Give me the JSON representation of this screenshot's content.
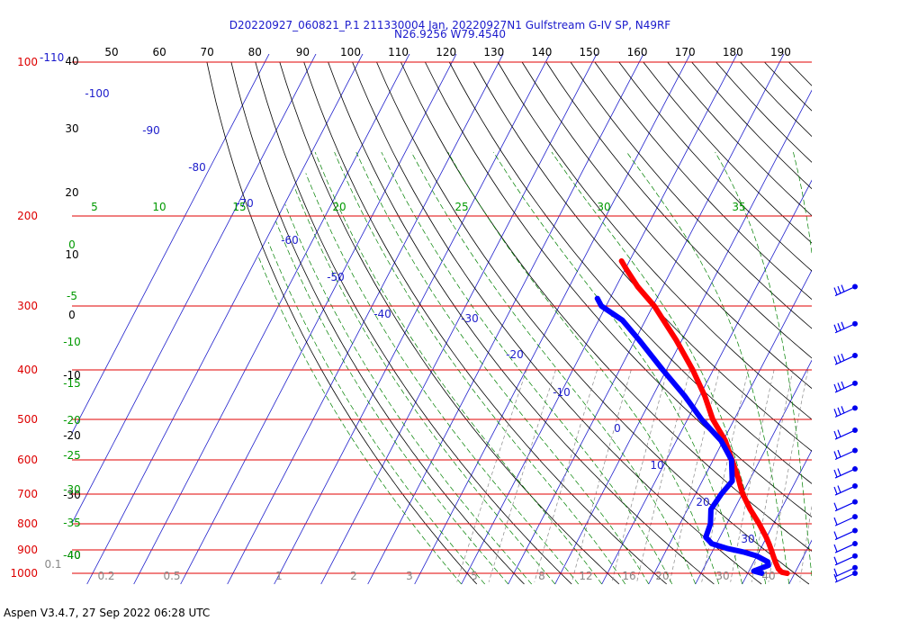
{
  "title": {
    "line1": "D20220927_060821_P.1 211330004 Jan, 20220927N1 Gulfstream G-IV SP, N49RF",
    "line2": "N26.9256 W79.4540"
  },
  "footer": "Aspen V3.4.7, 27 Sep 2022  06:28 UTC",
  "colors": {
    "isobar": "#e00000",
    "isotherm": "#2020cc",
    "dry_adiabat": "#000000",
    "mixing_ratio": "#888888",
    "moist_adiabat": "#008000",
    "temperature_trace": "#ff0000",
    "dewpoint_trace": "#0000ff"
  },
  "chart_data": {
    "type": "line",
    "subtype": "skew-T log-P diagram",
    "pressure_labels": [
      "100",
      "200",
      "300",
      "400",
      "500",
      "600",
      "700",
      "800",
      "900",
      "1000"
    ],
    "pressure_levels_hPa": [
      100,
      200,
      300,
      400,
      500,
      600,
      700,
      800,
      900,
      1000
    ],
    "corner_label": "-110",
    "top_temperature_ticks": [
      "50",
      "60",
      "70",
      "80",
      "90",
      "100",
      "110",
      "120",
      "130",
      "140",
      "150",
      "160",
      "170",
      "180",
      "190"
    ],
    "left_height_ticks": [
      "40",
      "30",
      "20",
      "10",
      "0",
      "-10",
      "-20",
      "-30",
      "-40"
    ],
    "isotherm_labels": [
      "-100",
      "-90",
      "-80",
      "-70",
      "-60",
      "-50",
      "-40",
      "-30",
      "-20",
      "-10",
      "0",
      "10",
      "20",
      "30"
    ],
    "moist_adiabat_top_labels": [
      "5",
      "10",
      "15",
      "20",
      "25",
      "30",
      "35"
    ],
    "moist_adiabat_left_labels": [
      "0",
      "-5",
      "-10",
      "-15",
      "-20",
      "-25",
      "-30",
      "-35",
      "-40"
    ],
    "mixing_ratio_labels": [
      "0.1",
      "0.2",
      "0.5",
      "1",
      "2",
      "3",
      "5",
      "8",
      "12",
      "16",
      "20",
      "30",
      "40"
    ],
    "series": [
      {
        "name": "Temperature",
        "color": "#ff0000",
        "points": [
          {
            "p": 1000,
            "t": 28.4
          },
          {
            "p": 995,
            "t": 27.1
          },
          {
            "p": 980,
            "t": 26.0
          },
          {
            "p": 950,
            "t": 24.6
          },
          {
            "p": 925,
            "t": 23.5
          },
          {
            "p": 900,
            "t": 22.4
          },
          {
            "p": 875,
            "t": 21.2
          },
          {
            "p": 850,
            "t": 19.9
          },
          {
            "p": 800,
            "t": 16.9
          },
          {
            "p": 750,
            "t": 13.4
          },
          {
            "p": 700,
            "t": 10.1
          },
          {
            "p": 670,
            "t": 8.4
          },
          {
            "p": 650,
            "t": 7.3
          },
          {
            "p": 600,
            "t": 4.0
          },
          {
            "p": 550,
            "t": 0.4
          },
          {
            "p": 500,
            "t": -4.6
          },
          {
            "p": 450,
            "t": -8.9
          },
          {
            "p": 400,
            "t": -14.4
          },
          {
            "p": 350,
            "t": -21.2
          },
          {
            "p": 300,
            "t": -29.7
          },
          {
            "p": 275,
            "t": -35.4
          },
          {
            "p": 255,
            "t": -39.6
          },
          {
            "p": 245,
            "t": -41.7
          }
        ]
      },
      {
        "name": "Dew point",
        "color": "#0000ff",
        "points": [
          {
            "p": 1000,
            "t": 23.0
          },
          {
            "p": 990,
            "t": 21.0
          },
          {
            "p": 980,
            "t": 22.0
          },
          {
            "p": 965,
            "t": 23.5
          },
          {
            "p": 950,
            "t": 23.0
          },
          {
            "p": 925,
            "t": 20.0
          },
          {
            "p": 910,
            "t": 17.0
          },
          {
            "p": 895,
            "t": 13.0
          },
          {
            "p": 875,
            "t": 9.0
          },
          {
            "p": 850,
            "t": 7.0
          },
          {
            "p": 800,
            "t": 6.5
          },
          {
            "p": 750,
            "t": 5.0
          },
          {
            "p": 700,
            "t": 5.5
          },
          {
            "p": 660,
            "t": 6.4
          },
          {
            "p": 600,
            "t": 3.9
          },
          {
            "p": 550,
            "t": -0.5
          },
          {
            "p": 500,
            "t": -7.0
          },
          {
            "p": 450,
            "t": -13.2
          },
          {
            "p": 400,
            "t": -20.8
          },
          {
            "p": 350,
            "t": -29.1
          },
          {
            "p": 320,
            "t": -34.9
          },
          {
            "p": 300,
            "t": -41.0
          },
          {
            "p": 290,
            "t": -42.7
          }
        ]
      }
    ],
    "wind_barbs": {
      "pressures_hPa": [
        1000,
        975,
        925,
        875,
        825,
        775,
        725,
        675,
        625,
        575,
        525,
        475,
        425,
        375,
        325,
        275
      ],
      "barb_count": [
        1,
        1,
        1,
        1,
        1,
        1,
        1,
        2,
        2,
        2,
        2,
        3,
        3,
        3,
        3,
        3
      ]
    }
  }
}
